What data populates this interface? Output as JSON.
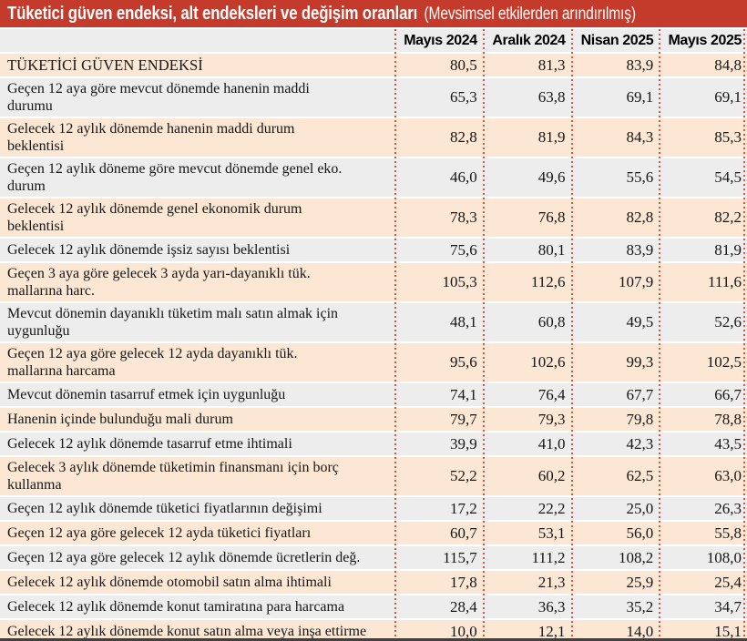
{
  "title": {
    "main": "Tüketici güven endeksi, alt endeksleri ve değişim oranları",
    "note": "(Mevsimsel etkilerden arındırılmış)"
  },
  "colors": {
    "accent_red": "#c43a2b",
    "row_peach": "#fbe7d4",
    "row_gray": "#ededed",
    "divider_dotted_red": "#d8563f",
    "bottom_rule": "#414141",
    "text": "#161616"
  },
  "chart_data": {
    "type": "table",
    "title": "Tüketici güven endeksi, alt endeksleri ve değişim oranları",
    "subtitle": "(Mevsimsel etkilerden arındırılmış)",
    "columns": [
      "Mayıs 2024",
      "Aralık 2024",
      "Nisan 2025",
      "Mayıs 2025"
    ],
    "decimal_separator": ",",
    "rows": [
      {
        "label": "TÜKETİCİ GÜVEN ENDEKSİ",
        "values": [
          80.5,
          81.3,
          83.9,
          84.8
        ]
      },
      {
        "label": "Geçen 12 aya göre mevcut dönemde hanenin maddi\ndurumu",
        "values": [
          65.3,
          63.8,
          69.1,
          69.1
        ]
      },
      {
        "label": "Gelecek 12 aylık dönemde hanenin maddi durum\nbeklentisi",
        "values": [
          82.8,
          81.9,
          84.3,
          85.3
        ]
      },
      {
        "label": "Geçen 12 aylık döneme göre mevcut dönemde genel eko.\ndurum",
        "values": [
          46.0,
          49.6,
          55.6,
          54.5
        ]
      },
      {
        "label": "Gelecek 12 aylık dönemde genel ekonomik durum\nbeklentisi",
        "values": [
          78.3,
          76.8,
          82.8,
          82.2
        ]
      },
      {
        "label": "Gelecek 12 aylık dönemde işsiz sayısı beklentisi",
        "values": [
          75.6,
          80.1,
          83.9,
          81.9
        ]
      },
      {
        "label": "Geçen 3 aya göre gelecek 3 ayda yarı-dayanıklı tük.\nmallarına harc.",
        "values": [
          105.3,
          112.6,
          107.9,
          111.6
        ]
      },
      {
        "label": "Mevcut dönemin dayanıklı tüketim malı satın almak için\nuygunluğu",
        "values": [
          48.1,
          60.8,
          49.5,
          52.6
        ]
      },
      {
        "label": "Geçen 12 aya göre gelecek 12 ayda dayanıklı tük.\nmallarına harcama",
        "values": [
          95.6,
          102.6,
          99.3,
          102.5
        ]
      },
      {
        "label": "Mevcut dönemin tasarruf etmek için uygunluğu",
        "values": [
          74.1,
          76.4,
          67.7,
          66.7
        ]
      },
      {
        "label": "Hanenin içinde bulunduğu mali durum",
        "values": [
          79.7,
          79.3,
          79.8,
          78.8
        ]
      },
      {
        "label": "Gelecek 12 aylık dönemde tasarruf etme ihtimali",
        "values": [
          39.9,
          41.0,
          42.3,
          43.5
        ]
      },
      {
        "label": "Gelecek 3 aylık dönemde tüketimin finansmanı için borç\nkullanma",
        "values": [
          52.2,
          60.2,
          62.5,
          63.0
        ]
      },
      {
        "label": "Geçen 12 aylık dönemde tüketici fiyatlarının değişimi",
        "values": [
          17.2,
          22.2,
          25.0,
          26.3
        ]
      },
      {
        "label": "Geçen 12 aya göre gelecek 12 ayda tüketici fiyatları",
        "values": [
          60.7,
          53.1,
          56.0,
          55.8
        ]
      },
      {
        "label": "Geçen 12 aya göre gelecek 12 aylık dönemde ücretlerin değ.",
        "values": [
          115.7,
          111.2,
          108.2,
          108.0
        ]
      },
      {
        "label": "Gelecek 12 aylık dönemde otomobil satın alma ihtimali",
        "values": [
          17.8,
          21.3,
          25.9,
          25.4
        ]
      },
      {
        "label": "Gelecek 12 aylık dönemde konut tamiratına para harcama",
        "values": [
          28.4,
          36.3,
          35.2,
          34.7
        ]
      },
      {
        "label": "Gelecek 12 aylık dönemde konut satın alma veya inşa ettirme",
        "values": [
          10.0,
          12.1,
          14.0,
          15.1
        ]
      }
    ]
  }
}
